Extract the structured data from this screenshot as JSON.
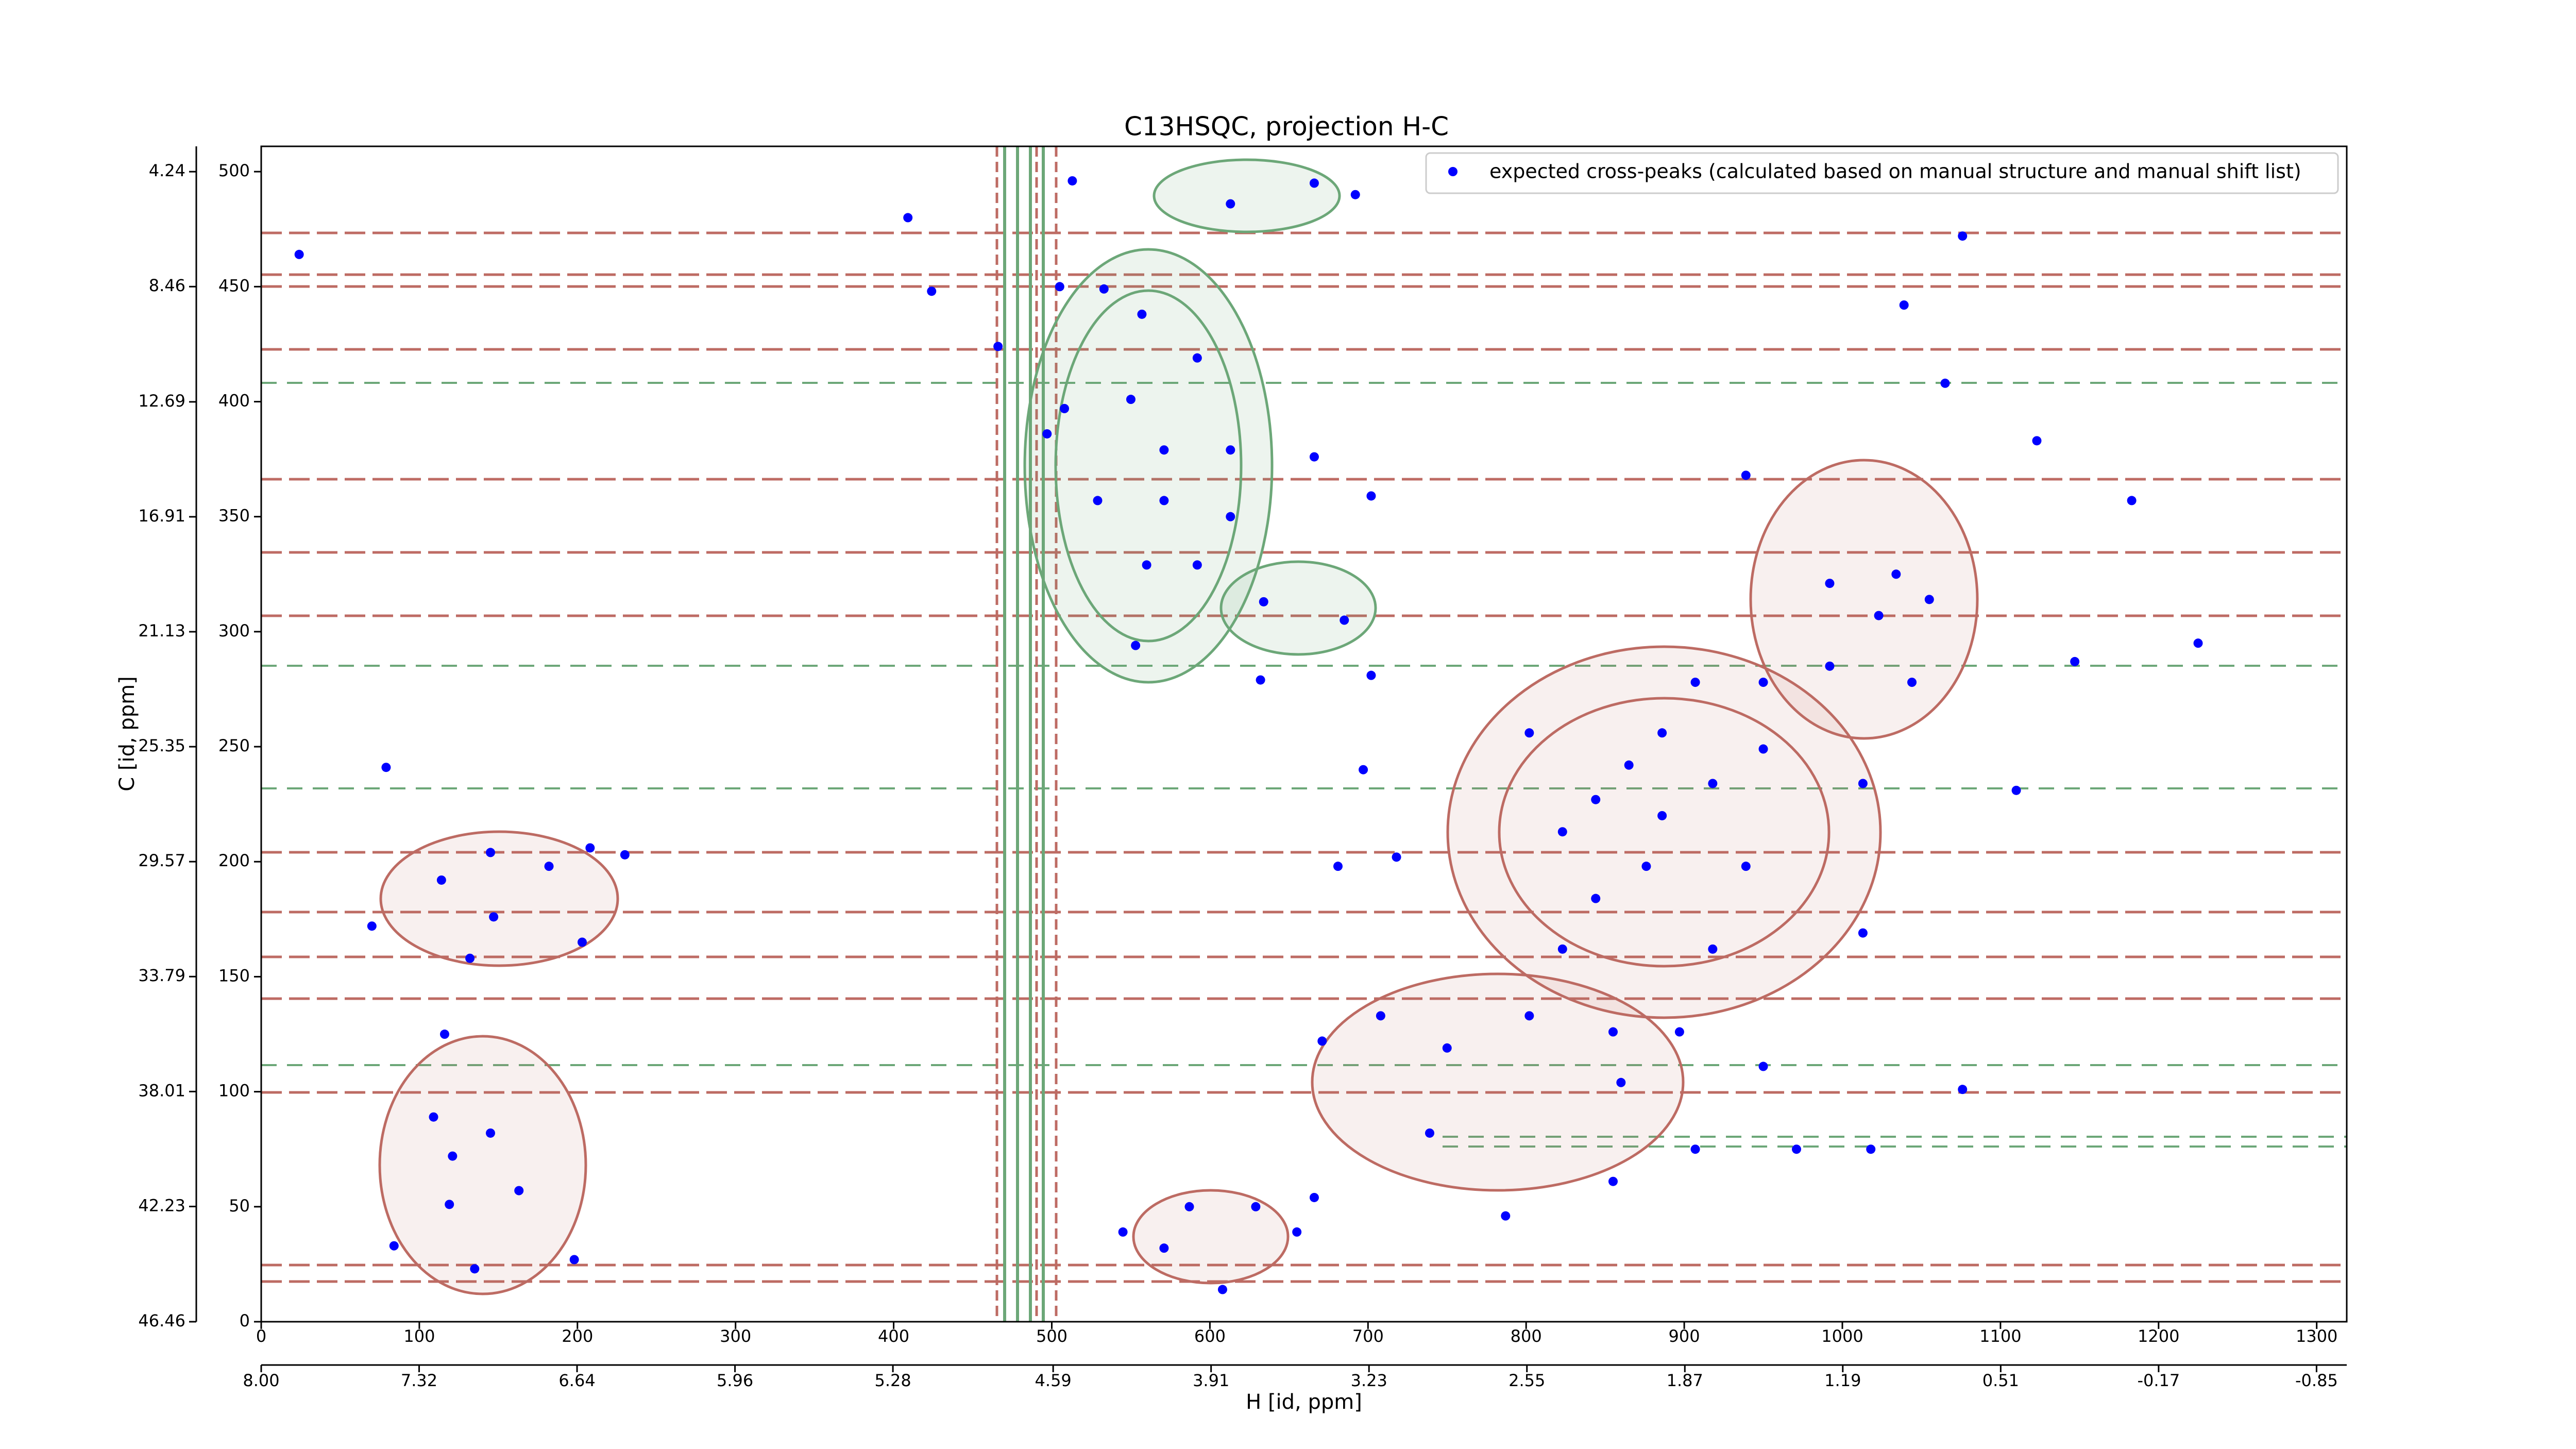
{
  "chart_data": {
    "type": "scatter",
    "title": "C13HSQC, projection H-C",
    "x_label": "H [id, ppm]",
    "y_label": "C [id, ppm]",
    "xlim": [
      0,
      1319
    ],
    "ylim": [
      0,
      511
    ],
    "xticks": [
      0,
      100,
      200,
      300,
      400,
      500,
      600,
      700,
      800,
      900,
      1000,
      1100,
      1200,
      1300
    ],
    "yticks": [
      0,
      50,
      100,
      150,
      200,
      250,
      300,
      350,
      400,
      450,
      500
    ],
    "x2lim": [
      8.0,
      -0.98
    ],
    "x2ticks": [
      {
        "value": 8.0,
        "label": "8.00"
      },
      7.32,
      6.64,
      5.96,
      5.28,
      4.59,
      3.91,
      3.23,
      2.55,
      1.87,
      1.19,
      0.51,
      -0.17,
      -0.85
    ],
    "y2lim": [
      46.46,
      3.31
    ],
    "y2ticks": [
      4.24,
      8.46,
      12.69,
      16.91,
      21.13,
      25.35,
      29.57,
      33.79,
      38.01,
      42.23,
      46.46
    ],
    "legend": "upper right",
    "series": [
      {
        "name": "expected cross-peaks (calculated based on manual structure and manual shift list)",
        "color": "#0000ff",
        "x": [
          24,
          409,
          79,
          114,
          145,
          182,
          208,
          230,
          70,
          147,
          132,
          203,
          116,
          109,
          121,
          145,
          163,
          119,
          84,
          135,
          198,
          424,
          466,
          505,
          533,
          557,
          592,
          508,
          550,
          571,
          613,
          497,
          529,
          571,
          613,
          560,
          592,
          613,
          666,
          692,
          513,
          666,
          702,
          685,
          634,
          553,
          632,
          702,
          1076,
          1039,
          1065,
          1123,
          1183,
          1225,
          1147,
          1110,
          939,
          992,
          1034,
          1055,
          1023,
          1044,
          992,
          950,
          907,
          886,
          865,
          844,
          886,
          918,
          950,
          823,
          802,
          876,
          844,
          823,
          802,
          855,
          897,
          950,
          860,
          750,
          708,
          671,
          666,
          739,
          787,
          855,
          907,
          971,
          1018,
          1076,
          718,
          681,
          697,
          587,
          571,
          545,
          608,
          629,
          655,
          1013,
          939,
          918,
          1013
        ],
        "y": [
          464,
          480,
          241,
          192,
          204,
          198,
          206,
          203,
          172,
          176,
          158,
          165,
          125,
          89,
          72,
          82,
          57,
          51,
          33,
          23,
          27,
          448,
          424,
          450,
          449,
          438,
          419,
          397,
          401,
          379,
          379,
          386,
          357,
          357,
          350,
          329,
          329,
          486,
          495,
          490,
          496,
          376,
          359,
          305,
          313,
          294,
          279,
          281,
          472,
          442,
          408,
          383,
          357,
          295,
          287,
          231,
          368,
          321,
          325,
          314,
          307,
          278,
          285,
          278,
          278,
          256,
          242,
          227,
          220,
          234,
          249,
          213,
          256,
          198,
          184,
          162,
          133,
          126,
          126,
          111,
          104,
          119,
          133,
          122,
          54,
          82,
          46,
          61,
          75,
          75,
          75,
          101,
          202,
          198,
          240,
          50,
          32,
          39,
          14,
          50,
          39,
          169,
          198,
          162,
          234
        ]
      }
    ]
  }
}
